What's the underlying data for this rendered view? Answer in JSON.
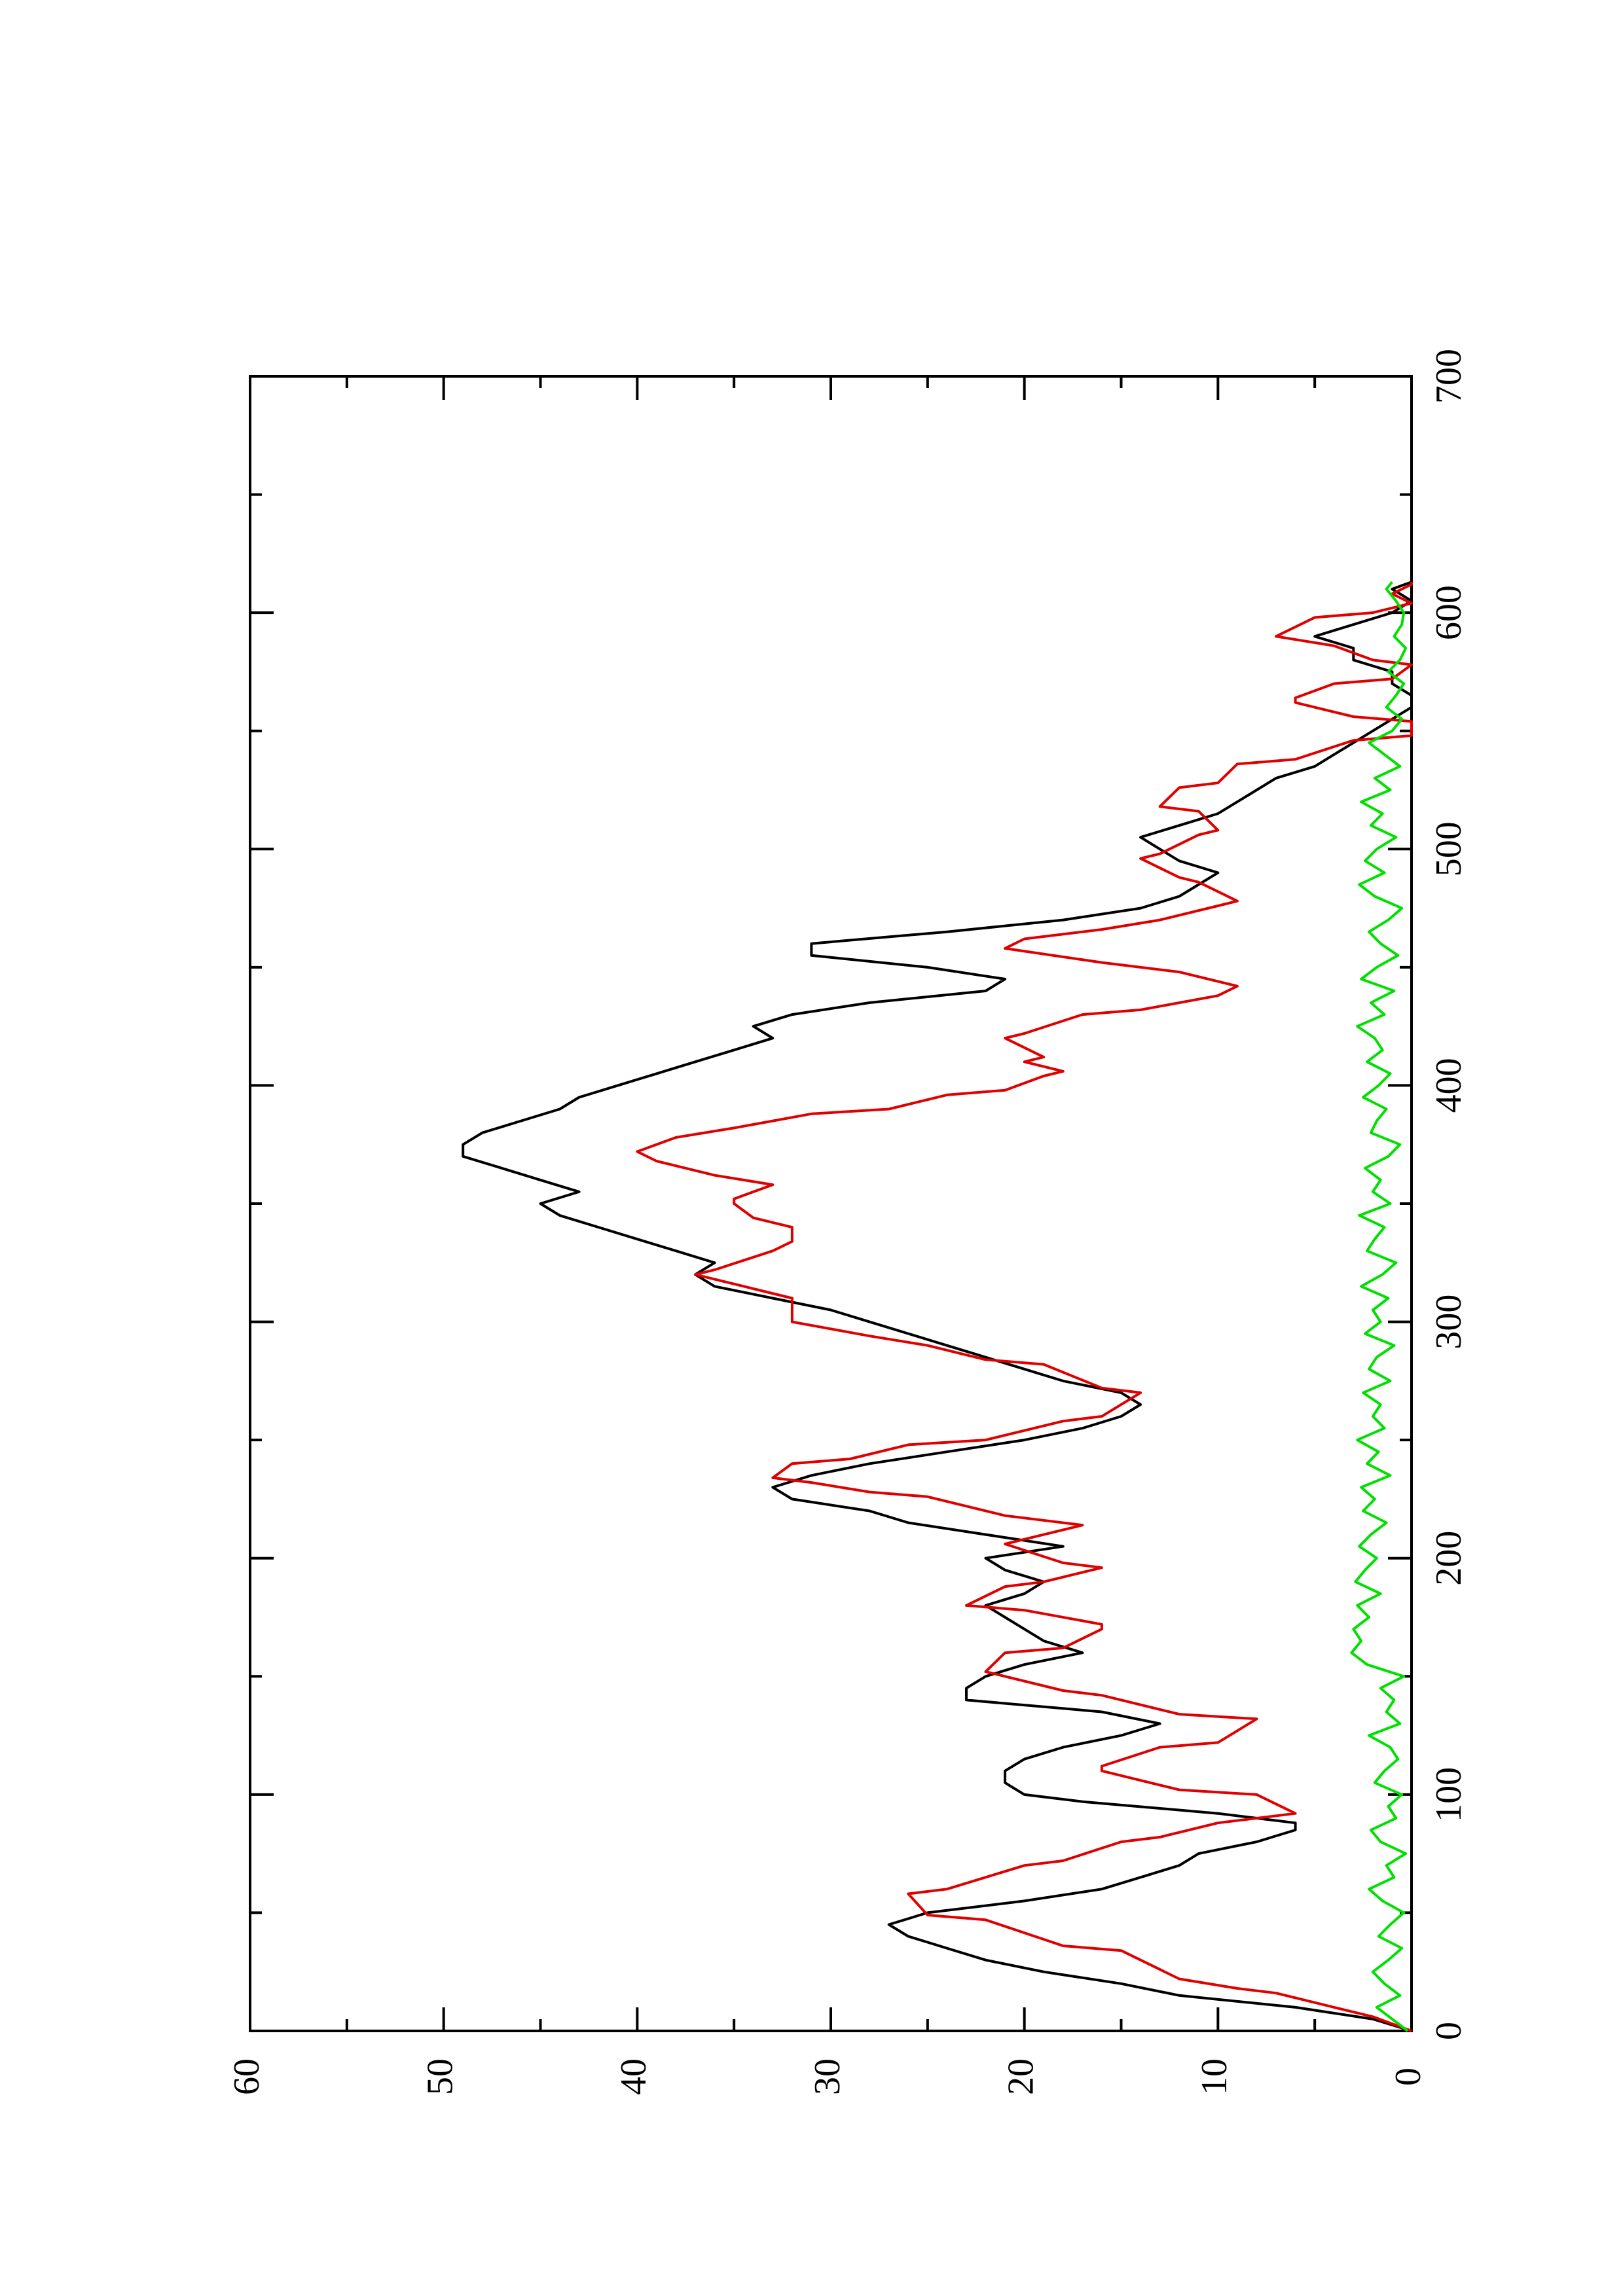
{
  "chart_data": {
    "type": "line",
    "orientation": "rotated-90-ccw",
    "title": "",
    "xlabel": "",
    "ylabel": "",
    "xlim": [
      0,
      700
    ],
    "ylim": [
      0,
      60
    ],
    "x_ticks": [
      "0",
      "100",
      "200",
      "300",
      "400",
      "500",
      "600",
      "700"
    ],
    "y_ticks": [
      "0",
      "10",
      "20",
      "30",
      "40",
      "50",
      "60"
    ],
    "grid": false,
    "legend": "none",
    "series": [
      {
        "color": "#000000",
        "x": [
          0,
          5,
          10,
          15,
          20,
          25,
          30,
          35,
          40,
          45,
          50,
          55,
          60,
          65,
          70,
          75,
          80,
          85,
          88,
          92,
          97,
          100,
          105,
          110,
          115,
          120,
          125,
          130,
          135,
          140,
          145,
          150,
          155,
          160,
          165,
          170,
          175,
          180,
          185,
          190,
          195,
          200,
          205,
          210,
          215,
          220,
          225,
          230,
          235,
          240,
          245,
          250,
          255,
          260,
          265,
          270,
          275,
          280,
          285,
          290,
          295,
          300,
          305,
          310,
          315,
          320,
          325,
          330,
          335,
          340,
          345,
          350,
          355,
          360,
          365,
          370,
          375,
          380,
          385,
          390,
          395,
          400,
          405,
          410,
          415,
          420,
          425,
          430,
          435,
          440,
          445,
          450,
          455,
          460,
          465,
          470,
          475,
          480,
          485,
          490,
          495,
          500,
          505,
          510,
          515,
          520,
          525,
          530,
          535,
          540,
          545,
          550,
          555,
          560,
          565,
          570,
          575,
          580,
          585,
          590,
          595,
          600,
          605,
          610,
          613
        ],
        "y": [
          0,
          2,
          6,
          12,
          15,
          19,
          22,
          24,
          26,
          27,
          25,
          20,
          16,
          14,
          12,
          11,
          8,
          6,
          6,
          10,
          17,
          20,
          21,
          21,
          20,
          18,
          15,
          13,
          16,
          23,
          23,
          22,
          20,
          17,
          19,
          20,
          21,
          22,
          20,
          19,
          21,
          22,
          18,
          22,
          26,
          28,
          32,
          33,
          31,
          28,
          24,
          20,
          17,
          15,
          14,
          15,
          18,
          20,
          22,
          24,
          26,
          28,
          30,
          33,
          36,
          37,
          36,
          38,
          40,
          42,
          44,
          45,
          43,
          45,
          47,
          49,
          49,
          48,
          46,
          44,
          43,
          41,
          39,
          37,
          35,
          33,
          34,
          32,
          28,
          22,
          21,
          25,
          31,
          31,
          24,
          18,
          14,
          12,
          11,
          10,
          12,
          13,
          14,
          12,
          10,
          9,
          8,
          7,
          5,
          4,
          3,
          2,
          1,
          0,
          0,
          1,
          1,
          3,
          3,
          5,
          3,
          1,
          0,
          1,
          0
        ]
      },
      {
        "color": "#e00000",
        "x": [
          0,
          6,
          10,
          16,
          18,
          22,
          34,
          36,
          47,
          49,
          58,
          60,
          70,
          72,
          80,
          82,
          88,
          92,
          100,
          102,
          110,
          112,
          120,
          122,
          132,
          134,
          142,
          144,
          150,
          152,
          160,
          162,
          170,
          172,
          178,
          180,
          188,
          190,
          196,
          198,
          206,
          208,
          214,
          218,
          226,
          228,
          232,
          234,
          240,
          242,
          248,
          250,
          258,
          260,
          270,
          272,
          282,
          284,
          290,
          294,
          300,
          304,
          310,
          314,
          320,
          322,
          330,
          334,
          340,
          344,
          350,
          352,
          358,
          362,
          368,
          372,
          378,
          382,
          388,
          390,
          396,
          398,
          404,
          406,
          410,
          412,
          420,
          422,
          430,
          432,
          438,
          442,
          448,
          452,
          458,
          462,
          466,
          470,
          476,
          478,
          486,
          488,
          496,
          498,
          506,
          508,
          516,
          518,
          526,
          528,
          536,
          538,
          546,
          548,
          554,
          556,
          562,
          564,
          570,
          572,
          578,
          580,
          586,
          590,
          598,
          600,
          604,
          608,
          612,
          613
        ],
        "y": [
          0,
          2,
          4,
          7,
          9,
          12,
          15,
          18,
          22,
          25,
          26,
          24,
          20,
          18,
          15,
          13,
          10,
          6,
          8,
          12,
          16,
          16,
          13,
          10,
          8,
          12,
          16,
          18,
          21,
          22,
          21,
          18,
          16,
          16,
          20,
          23,
          21,
          19,
          16,
          18,
          21,
          20,
          17,
          21,
          25,
          28,
          31,
          33,
          32,
          29,
          26,
          22,
          18,
          16,
          14,
          16,
          19,
          22,
          25,
          28,
          32,
          32,
          32,
          34,
          37,
          36,
          33,
          32,
          32,
          34,
          35,
          35,
          33,
          36,
          39,
          40,
          38,
          35,
          31,
          27,
          24,
          21,
          19,
          18,
          20,
          19,
          21,
          20,
          17,
          14,
          10,
          9,
          12,
          16,
          21,
          20,
          16,
          13,
          10,
          9,
          11,
          12,
          14,
          13,
          11,
          10,
          11,
          13,
          12,
          10,
          9,
          6,
          3,
          0,
          0,
          3,
          6,
          6,
          4,
          1,
          0,
          2,
          4,
          7,
          5,
          2,
          0,
          1,
          0,
          0
        ]
      },
      {
        "color": "#00e000",
        "x": [
          0,
          5,
          10,
          15,
          20,
          25,
          30,
          35,
          40,
          45,
          50,
          55,
          60,
          65,
          70,
          75,
          80,
          85,
          90,
          95,
          100,
          105,
          110,
          115,
          120,
          125,
          130,
          135,
          140,
          145,
          150,
          155,
          160,
          165,
          170,
          175,
          180,
          185,
          190,
          195,
          200,
          205,
          210,
          215,
          220,
          225,
          230,
          235,
          240,
          245,
          250,
          255,
          260,
          265,
          270,
          275,
          280,
          285,
          290,
          295,
          300,
          305,
          310,
          315,
          320,
          325,
          330,
          335,
          340,
          345,
          350,
          355,
          360,
          365,
          370,
          375,
          380,
          385,
          390,
          395,
          400,
          405,
          410,
          415,
          420,
          425,
          430,
          435,
          440,
          445,
          450,
          455,
          460,
          465,
          470,
          475,
          480,
          485,
          490,
          495,
          500,
          505,
          510,
          515,
          520,
          525,
          530,
          535,
          540,
          545,
          550,
          555,
          560,
          565,
          570,
          575,
          580,
          585,
          590,
          595,
          600,
          605,
          610,
          613
        ],
        "y": [
          0.2,
          1.0,
          1.8,
          0.6,
          1.4,
          2.0,
          1.2,
          0.5,
          1.7,
          1.1,
          0.4,
          1.5,
          2.2,
          0.9,
          1.3,
          0.3,
          1.6,
          2.1,
          0.8,
          1.2,
          0.5,
          1.9,
          1.4,
          0.7,
          1.1,
          2.2,
          0.6,
          1.3,
          0.9,
          1.6,
          0.4,
          2.3,
          3.1,
          2.6,
          3.0,
          2.2,
          2.8,
          1.6,
          2.9,
          2.4,
          1.8,
          2.7,
          2.1,
          1.3,
          2.5,
          1.9,
          2.6,
          1.1,
          2.3,
          1.7,
          2.8,
          1.4,
          2.0,
          1.6,
          2.5,
          1.1,
          2.2,
          1.8,
          0.9,
          2.4,
          1.6,
          2.0,
          1.2,
          2.6,
          1.5,
          0.8,
          2.3,
          1.9,
          1.4,
          2.7,
          1.1,
          2.0,
          1.6,
          2.4,
          1.2,
          0.6,
          2.1,
          1.8,
          1.3,
          2.5,
          1.7,
          1.1,
          2.3,
          1.5,
          1.9,
          2.8,
          1.4,
          2.1,
          0.9,
          2.6,
          1.8,
          0.7,
          1.6,
          2.2,
          1.2,
          0.5,
          1.9,
          2.7,
          1.4,
          2.4,
          1.8,
          0.8,
          2.1,
          1.5,
          2.6,
          1.1,
          1.9,
          0.6,
          1.4,
          2.2,
          1.0,
          0.5,
          1.3,
          0.8,
          0.4,
          1.2,
          0.6,
          0.3,
          0.9,
          0.5,
          0.4,
          0.8,
          1.3,
          1.0
        ]
      }
    ]
  }
}
